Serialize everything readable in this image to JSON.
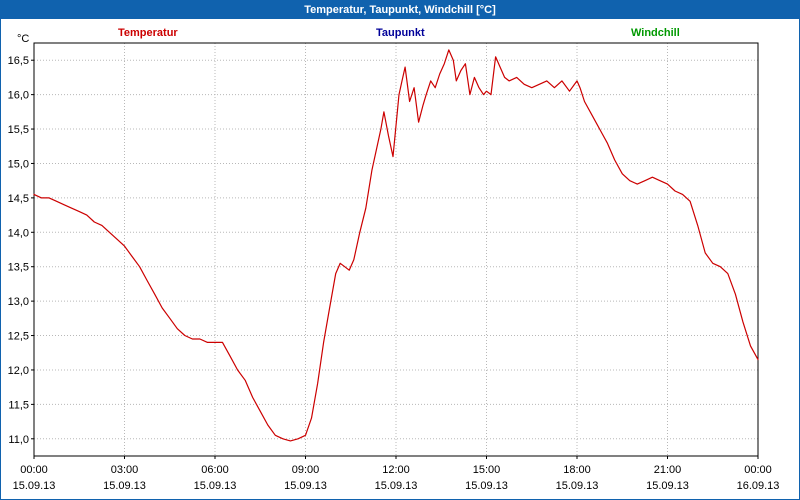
{
  "window": {
    "title": "Temperatur, Taupunkt, Windchill [°C]"
  },
  "legend": {
    "items": [
      {
        "label": "Temperatur",
        "color": "#cc0000"
      },
      {
        "label": "Taupunkt",
        "color": "#000099"
      },
      {
        "label": "Windchill",
        "color": "#009900"
      }
    ],
    "position": "top"
  },
  "axes": {
    "y_unit": "°C"
  },
  "chart_data": {
    "type": "line",
    "title": "Temperatur, Taupunkt, Windchill [°C]",
    "xlabel": "",
    "ylabel": "°C",
    "grid": "dotted",
    "legend_position": "top",
    "xlim_hours": [
      0,
      24
    ],
    "ylim": [
      10.75,
      16.75
    ],
    "y_ticks": [
      16.5,
      16.0,
      15.5,
      15.0,
      14.5,
      14.0,
      13.5,
      13.0,
      12.5,
      12.0,
      11.5,
      11.0
    ],
    "y_tick_labels": [
      "16,5",
      "16,0",
      "15,5",
      "15,0",
      "14,5",
      "14,0",
      "13,5",
      "13,0",
      "12,5",
      "12,0",
      "11,5",
      "11,0"
    ],
    "x_tick_hours": [
      0,
      3,
      6,
      9,
      12,
      15,
      18,
      21,
      24
    ],
    "x_tick_times": [
      "00:00",
      "03:00",
      "06:00",
      "09:00",
      "12:00",
      "15:00",
      "18:00",
      "21:00",
      "00:00"
    ],
    "x_tick_dates": [
      "15.09.13",
      "15.09.13",
      "15.09.13",
      "15.09.13",
      "15.09.13",
      "15.09.13",
      "15.09.13",
      "15.09.13",
      "16.09.13"
    ],
    "series": [
      {
        "name": "Temperatur",
        "color": "#cc0000",
        "points": [
          [
            0,
            14.55
          ],
          [
            0.25,
            14.5
          ],
          [
            0.5,
            14.5
          ],
          [
            0.75,
            14.45
          ],
          [
            1,
            14.4
          ],
          [
            1.25,
            14.35
          ],
          [
            1.5,
            14.3
          ],
          [
            1.75,
            14.25
          ],
          [
            2,
            14.15
          ],
          [
            2.25,
            14.1
          ],
          [
            2.5,
            14.0
          ],
          [
            2.75,
            13.9
          ],
          [
            3,
            13.8
          ],
          [
            3.25,
            13.65
          ],
          [
            3.5,
            13.5
          ],
          [
            3.75,
            13.3
          ],
          [
            4,
            13.1
          ],
          [
            4.25,
            12.9
          ],
          [
            4.5,
            12.75
          ],
          [
            4.75,
            12.6
          ],
          [
            5,
            12.5
          ],
          [
            5.25,
            12.45
          ],
          [
            5.5,
            12.45
          ],
          [
            5.75,
            12.4
          ],
          [
            6,
            12.4
          ],
          [
            6.25,
            12.4
          ],
          [
            6.5,
            12.2
          ],
          [
            6.75,
            12.0
          ],
          [
            7,
            11.85
          ],
          [
            7.25,
            11.6
          ],
          [
            7.5,
            11.4
          ],
          [
            7.75,
            11.2
          ],
          [
            8,
            11.05
          ],
          [
            8.25,
            11.0
          ],
          [
            8.5,
            10.97
          ],
          [
            8.75,
            11.0
          ],
          [
            9,
            11.05
          ],
          [
            9.2,
            11.3
          ],
          [
            9.4,
            11.8
          ],
          [
            9.6,
            12.4
          ],
          [
            9.8,
            12.9
          ],
          [
            10,
            13.4
          ],
          [
            10.15,
            13.55
          ],
          [
            10.3,
            13.5
          ],
          [
            10.45,
            13.45
          ],
          [
            10.6,
            13.6
          ],
          [
            10.8,
            14.0
          ],
          [
            11,
            14.35
          ],
          [
            11.2,
            14.9
          ],
          [
            11.4,
            15.3
          ],
          [
            11.5,
            15.5
          ],
          [
            11.6,
            15.75
          ],
          [
            11.75,
            15.4
          ],
          [
            11.9,
            15.1
          ],
          [
            12,
            15.55
          ],
          [
            12.1,
            16.0
          ],
          [
            12.2,
            16.2
          ],
          [
            12.3,
            16.4
          ],
          [
            12.45,
            15.9
          ],
          [
            12.6,
            16.1
          ],
          [
            12.75,
            15.6
          ],
          [
            12.9,
            15.85
          ],
          [
            13,
            16.0
          ],
          [
            13.15,
            16.2
          ],
          [
            13.3,
            16.1
          ],
          [
            13.45,
            16.3
          ],
          [
            13.6,
            16.45
          ],
          [
            13.75,
            16.65
          ],
          [
            13.9,
            16.5
          ],
          [
            14,
            16.2
          ],
          [
            14.15,
            16.35
          ],
          [
            14.3,
            16.45
          ],
          [
            14.45,
            16.0
          ],
          [
            14.6,
            16.25
          ],
          [
            14.75,
            16.1
          ],
          [
            14.9,
            16.0
          ],
          [
            15,
            16.05
          ],
          [
            15.15,
            16.0
          ],
          [
            15.3,
            16.55
          ],
          [
            15.45,
            16.4
          ],
          [
            15.6,
            16.25
          ],
          [
            15.75,
            16.2
          ],
          [
            16,
            16.25
          ],
          [
            16.25,
            16.15
          ],
          [
            16.5,
            16.1
          ],
          [
            16.75,
            16.15
          ],
          [
            17,
            16.2
          ],
          [
            17.25,
            16.1
          ],
          [
            17.5,
            16.2
          ],
          [
            17.75,
            16.05
          ],
          [
            18,
            16.2
          ],
          [
            18.1,
            16.1
          ],
          [
            18.25,
            15.9
          ],
          [
            18.5,
            15.7
          ],
          [
            18.75,
            15.5
          ],
          [
            19,
            15.3
          ],
          [
            19.25,
            15.05
          ],
          [
            19.5,
            14.85
          ],
          [
            19.75,
            14.75
          ],
          [
            20,
            14.7
          ],
          [
            20.25,
            14.75
          ],
          [
            20.5,
            14.8
          ],
          [
            20.75,
            14.75
          ],
          [
            21,
            14.7
          ],
          [
            21.25,
            14.6
          ],
          [
            21.5,
            14.55
          ],
          [
            21.75,
            14.45
          ],
          [
            22,
            14.1
          ],
          [
            22.25,
            13.7
          ],
          [
            22.5,
            13.55
          ],
          [
            22.75,
            13.5
          ],
          [
            23,
            13.4
          ],
          [
            23.25,
            13.1
          ],
          [
            23.5,
            12.7
          ],
          [
            23.75,
            12.35
          ],
          [
            24,
            12.15
          ]
        ]
      },
      {
        "name": "Taupunkt",
        "color": "#000099",
        "points": []
      },
      {
        "name": "Windchill",
        "color": "#009900",
        "points": []
      }
    ]
  }
}
